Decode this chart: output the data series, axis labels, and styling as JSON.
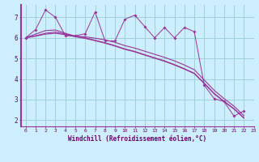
{
  "xlabel": "Windchill (Refroidissement éolien,°C)",
  "bg_color": "#cceeff",
  "line_color": "#993399",
  "grid_color": "#99cccc",
  "xlim": [
    -0.5,
    23
  ],
  "ylim": [
    1.7,
    7.6
  ],
  "yticks": [
    2,
    3,
    4,
    5,
    6,
    7
  ],
  "xticks": [
    0,
    1,
    2,
    3,
    4,
    5,
    6,
    7,
    8,
    9,
    10,
    11,
    12,
    13,
    14,
    15,
    16,
    17,
    18,
    19,
    20,
    21,
    22,
    23
  ],
  "data_x": [
    0,
    1,
    2,
    3,
    4,
    5,
    6,
    7,
    8,
    9,
    10,
    11,
    12,
    13,
    14,
    15,
    16,
    17,
    18,
    19,
    20,
    21,
    22
  ],
  "series1_y": [
    6.0,
    6.4,
    7.35,
    7.0,
    6.1,
    6.1,
    6.2,
    7.25,
    5.85,
    5.85,
    6.9,
    7.1,
    6.55,
    6.0,
    6.5,
    6.0,
    6.5,
    6.3,
    3.7,
    3.05,
    2.9,
    2.2,
    2.45
  ],
  "series2_y": [
    6.0,
    6.18,
    6.35,
    6.38,
    6.22,
    6.08,
    6.05,
    5.98,
    5.9,
    5.78,
    5.62,
    5.5,
    5.35,
    5.2,
    5.05,
    4.88,
    4.68,
    4.45,
    3.95,
    3.45,
    3.05,
    2.68,
    2.22
  ],
  "series3_y": [
    6.0,
    6.1,
    6.22,
    6.28,
    6.18,
    6.08,
    6.0,
    5.88,
    5.76,
    5.62,
    5.46,
    5.34,
    5.18,
    5.03,
    4.88,
    4.7,
    4.5,
    4.28,
    3.8,
    3.3,
    2.92,
    2.56,
    2.12
  ],
  "series4_y": [
    6.0,
    6.08,
    6.18,
    6.22,
    6.15,
    6.05,
    5.97,
    5.86,
    5.74,
    5.6,
    5.44,
    5.32,
    5.16,
    5.01,
    4.86,
    4.68,
    4.48,
    4.26,
    3.78,
    3.28,
    2.9,
    2.54,
    2.1
  ]
}
